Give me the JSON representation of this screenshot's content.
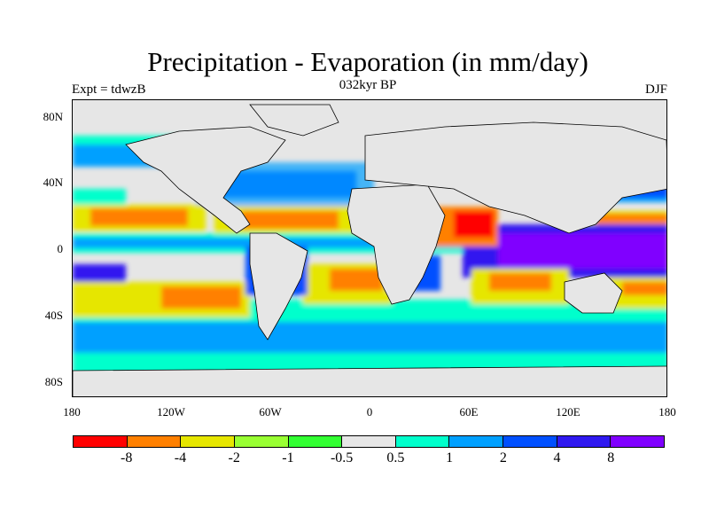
{
  "title": "Precipitation - Evaporation (in mm/day)",
  "subtitle": "032kyr BP",
  "left_label": "Expt = tdwzB",
  "right_label": "DJF",
  "lat_labels": [
    "80N",
    "40N",
    "0",
    "40S",
    "80S"
  ],
  "lon_labels": [
    "180",
    "120W",
    "60W",
    "0",
    "60E",
    "120E",
    "180"
  ],
  "colorbar": {
    "colors": [
      "#ff0000",
      "#ff8000",
      "#e6e600",
      "#99ff33",
      "#33ff33",
      "#e6e6e6",
      "#00ffcc",
      "#00a0ff",
      "#0050ff",
      "#3019f0",
      "#8000ff"
    ],
    "labels": [
      "-8",
      "-4",
      "-2",
      "-1",
      "-0.5",
      "0.5",
      "1",
      "2",
      "4",
      "8"
    ]
  }
}
